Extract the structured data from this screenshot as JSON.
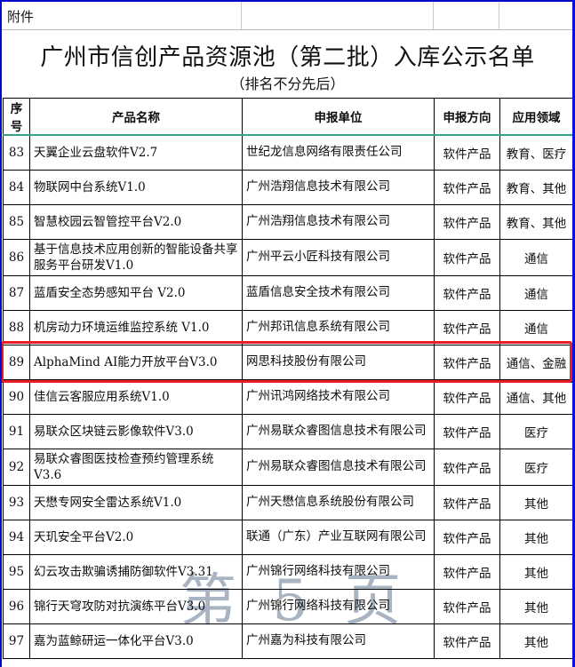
{
  "page": {
    "attachment_label": "附件",
    "title": "广州市信创产品资源池（第二批）入库公示名单",
    "subtitle": "（排名不分先后）",
    "watermark_text": "第 5 页"
  },
  "table": {
    "headers": [
      "序号",
      "产品名称",
      "申报单位",
      "申报方向",
      "应用领域"
    ],
    "rows": [
      {
        "no": "83",
        "product": "天翼企业云盘软件V2.7",
        "company": "世纪龙信息网络有限责任公司",
        "direction": "软件产品",
        "field": "教育、医疗"
      },
      {
        "no": "84",
        "product": "物联网中台系统V1.0",
        "company": "广州浩翔信息技术有限公司",
        "direction": "软件产品",
        "field": "教育、其他"
      },
      {
        "no": "85",
        "product": "智慧校园云智管控平台V2.0",
        "company": "广州浩翔信息技术有限公司",
        "direction": "软件产品",
        "field": "教育、其他"
      },
      {
        "no": "86",
        "product": "基于信息技术应用创新的智能设备共享服务平台研发V1.0",
        "company": "广州平云小匠科技有限公司",
        "direction": "软件产品",
        "field": "通信"
      },
      {
        "no": "87",
        "product": "蓝盾安全态势感知平台 V2.0",
        "company": "蓝盾信息安全技术有限公司",
        "direction": "软件产品",
        "field": "通信"
      },
      {
        "no": "88",
        "product": "机房动力环境运维监控系统 V1.0",
        "company": "广州邦讯信息系统有限公司",
        "direction": "软件产品",
        "field": "通信"
      },
      {
        "no": "89",
        "product": "AlphaMind AI能力开放平台V3.0",
        "company": "网思科技股份有限公司",
        "direction": "软件产品",
        "field": "通信、金融"
      },
      {
        "no": "90",
        "product": "佳信云客服应用系统V1.0",
        "company": "广州讯鸿网络技术有限公司",
        "direction": "软件产品",
        "field": "通信、其他"
      },
      {
        "no": "91",
        "product": "易联众区块链云影像软件V3.0",
        "company": "广州易联众睿图信息技术有限公司",
        "direction": "软件产品",
        "field": "医疗"
      },
      {
        "no": "92",
        "product": "易联众睿图医技检查预约管理系统V3.6",
        "company": "广州易联众睿图信息技术有限公司",
        "direction": "软件产品",
        "field": "医疗"
      },
      {
        "no": "93",
        "product": "天懋专网安全雷达系统V1.0",
        "company": "广州天懋信息系统股份有限公司",
        "direction": "软件产品",
        "field": "其他"
      },
      {
        "no": "94",
        "product": "天玑安全平台V2.0",
        "company": "联通（广东）产业互联网有限公司",
        "direction": "软件产品",
        "field": "其他"
      },
      {
        "no": "95",
        "product": "幻云攻击欺骗诱捕防御软件V3.31",
        "company": "广州锦行网络科技有限公司",
        "direction": "软件产品",
        "field": "其他"
      },
      {
        "no": "96",
        "product": "锦行天穹攻防对抗演练平台V3.0",
        "company": "广州锦行网络科技有限公司",
        "direction": "软件产品",
        "field": "其他"
      },
      {
        "no": "97",
        "product": "嘉为蓝鲸研运一体化平台V3.0",
        "company": "广州嘉为科技有限公司",
        "direction": "软件产品",
        "field": "其他"
      }
    ]
  },
  "highlight": {
    "row_no": "89"
  },
  "colors": {
    "outer_border": "#000ac8",
    "header_rule": "#2ca48c",
    "highlight_red": "#ec1c24",
    "page_break_blue": "#0014cc",
    "watermark": "#a8b4c2",
    "grid_gray": "#c9c9c9"
  }
}
